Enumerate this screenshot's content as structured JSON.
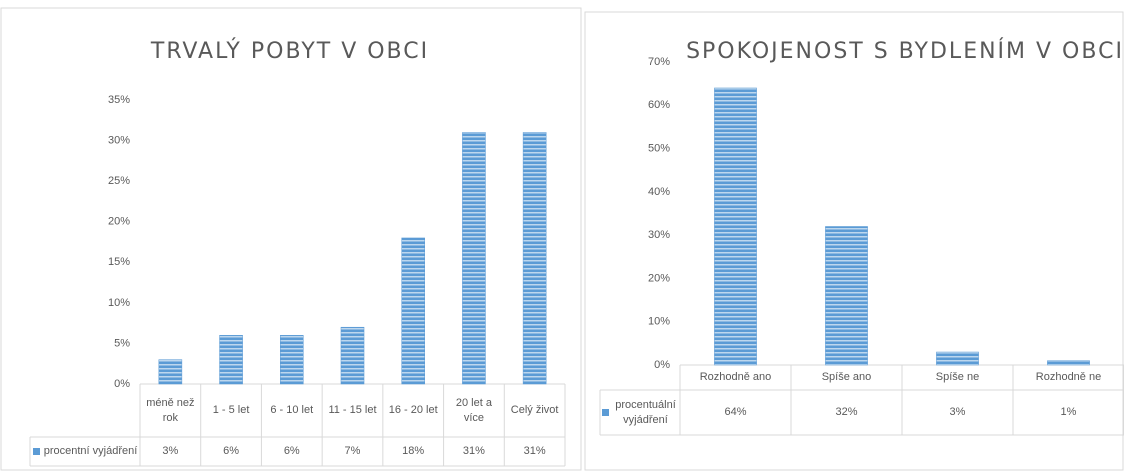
{
  "chart_data": [
    {
      "type": "bar",
      "title": "TRVALÝ POBYT V OBCI",
      "categories": [
        "méně než rok",
        "1 - 5 let",
        "6 - 10 let",
        "11 - 15 let",
        "16 - 20 let",
        "20 let a více",
        "Celý život"
      ],
      "series": [
        {
          "name": "procentní vyjádření",
          "color": "#5b9bd5",
          "values": [
            3,
            6,
            6,
            7,
            18,
            31,
            31
          ],
          "value_labels": [
            "3%",
            "6%",
            "6%",
            "7%",
            "18%",
            "31%",
            "31%"
          ]
        }
      ],
      "ylim": [
        0,
        35
      ],
      "yticks": [
        {
          "value": 0,
          "label": "0%"
        },
        {
          "value": 5,
          "label": "5%"
        },
        {
          "value": 10,
          "label": "10%"
        },
        {
          "value": 15,
          "label": "15%"
        },
        {
          "value": 20,
          "label": "20%"
        },
        {
          "value": 25,
          "label": "25%"
        },
        {
          "value": 30,
          "label": "30%"
        },
        {
          "value": 35,
          "label": "35%"
        }
      ],
      "grid": false
    },
    {
      "type": "bar",
      "title": "SPOKOJENOST S BYDLENÍM V OBCI",
      "categories": [
        "Rozhodně ano",
        "Spíše ano",
        "Spíše ne",
        "Rozhodně ne"
      ],
      "series": [
        {
          "name": "procentuální vyjádření",
          "color": "#5b9bd5",
          "values": [
            64,
            32,
            3,
            1
          ],
          "value_labels": [
            "64%",
            "32%",
            "3%",
            "1%"
          ]
        }
      ],
      "ylim": [
        0,
        70
      ],
      "yticks": [
        {
          "value": 0,
          "label": "0%"
        },
        {
          "value": 10,
          "label": "10%"
        },
        {
          "value": 20,
          "label": "20%"
        },
        {
          "value": 30,
          "label": "30%"
        },
        {
          "value": 40,
          "label": "40%"
        },
        {
          "value": 50,
          "label": "50%"
        },
        {
          "value": 60,
          "label": "60%"
        },
        {
          "value": 70,
          "label": "70%"
        }
      ],
      "grid": false
    }
  ]
}
